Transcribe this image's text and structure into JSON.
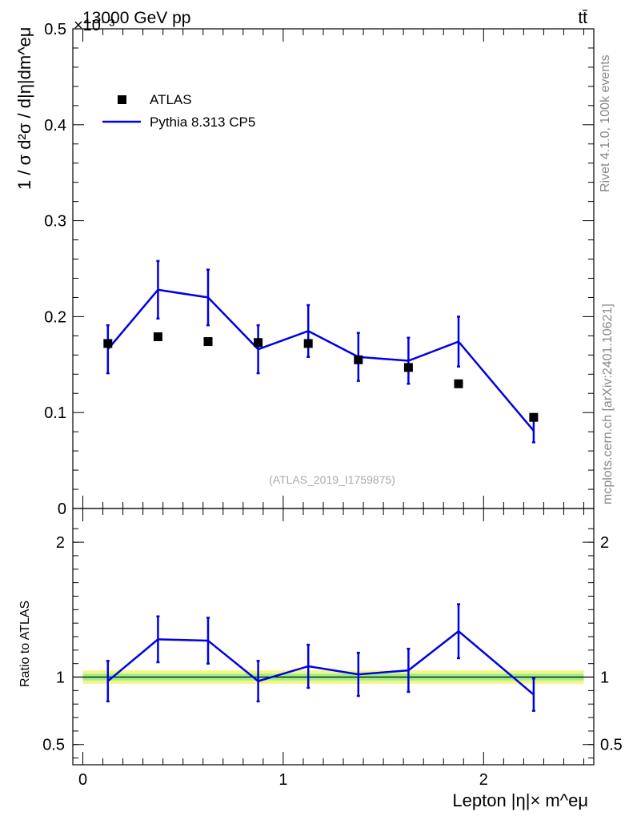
{
  "header": {
    "left_title": "13000 GeV pp",
    "right_title": "tt̄",
    "exponent_label": "×10⁻³"
  },
  "side_labels": {
    "rivet": "Rivet 4.1.0,  100k events",
    "mcplots": "mcplots.cern.ch [arXiv:2401.10621]"
  },
  "watermark": "(ATLAS_2019_I1759875)",
  "legend": {
    "data_label": "ATLAS",
    "mc_label": "Pythia 8.313 CP5",
    "placement": "top-left"
  },
  "colors": {
    "data": "#000000",
    "mc": "#0000e6",
    "band_outer": "#f5f58c",
    "band_inner": "#9cf08c",
    "ratio_line": "#000000"
  },
  "chart_data": [
    {
      "type": "scatter",
      "name": "main",
      "ylabel": "1 / σ  d²σ / d|η|dm^eμ",
      "ylim": [
        0,
        0.5
      ],
      "xlim": [
        -0.05,
        2.55
      ],
      "yticks": [
        0,
        0.1,
        0.2,
        0.3,
        0.4,
        0.5
      ],
      "ytick_labels": [
        "0",
        "0.1",
        "0.2",
        "0.3",
        "0.4",
        "0.5"
      ],
      "bins": [
        [
          0.0,
          0.25
        ],
        [
          0.25,
          0.5
        ],
        [
          0.5,
          0.75
        ],
        [
          0.75,
          1.0
        ],
        [
          1.0,
          1.25
        ],
        [
          1.25,
          1.5
        ],
        [
          1.5,
          1.75
        ],
        [
          1.75,
          2.0
        ],
        [
          2.0,
          2.5
        ]
      ],
      "series": [
        {
          "name": "ATLAS",
          "x": [
            0.125,
            0.375,
            0.625,
            0.875,
            1.125,
            1.375,
            1.625,
            1.875,
            2.25
          ],
          "values": [
            0.172,
            0.179,
            0.174,
            0.173,
            0.172,
            0.155,
            0.147,
            0.13,
            0.095
          ]
        },
        {
          "name": "Pythia 8.313 CP5",
          "x": [
            0.125,
            0.375,
            0.625,
            0.875,
            1.125,
            1.375,
            1.625,
            1.875,
            2.25
          ],
          "values": [
            0.166,
            0.228,
            0.22,
            0.166,
            0.185,
            0.158,
            0.154,
            0.174,
            0.081
          ],
          "err": [
            0.025,
            0.03,
            0.029,
            0.025,
            0.027,
            0.025,
            0.024,
            0.026,
            0.012
          ]
        }
      ]
    },
    {
      "type": "line",
      "name": "ratio",
      "ylabel": "Ratio to ATLAS",
      "xlabel": "Lepton |η|× m^eμ",
      "ylim": [
        0.35,
        2.25
      ],
      "xlim": [
        -0.05,
        2.55
      ],
      "yticks": [
        0.5,
        1,
        2
      ],
      "ytick_labels": [
        "0.5",
        "1",
        "2"
      ],
      "xticks": [
        0,
        1,
        2
      ],
      "xtick_labels": [
        "0",
        "1",
        "2"
      ],
      "band_outer": [
        0.95,
        1.05
      ],
      "band_inner": [
        0.975,
        1.025
      ],
      "series": [
        {
          "name": "Pythia 8.313 CP5",
          "x": [
            0.125,
            0.375,
            0.625,
            0.875,
            1.125,
            1.375,
            1.625,
            1.875,
            2.25
          ],
          "values": [
            0.97,
            1.28,
            1.27,
            0.97,
            1.08,
            1.02,
            1.05,
            1.34,
            0.87
          ],
          "err": [
            0.15,
            0.17,
            0.17,
            0.15,
            0.16,
            0.16,
            0.16,
            0.2,
            0.12
          ]
        }
      ]
    }
  ]
}
